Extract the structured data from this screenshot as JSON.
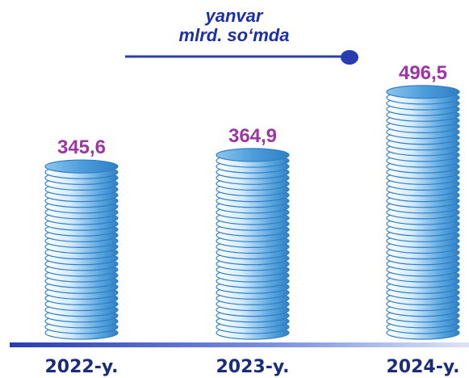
{
  "chart_data": {
    "type": "bar",
    "title": "yanvar",
    "subtitle": "mlrd. so‘mda",
    "categories": [
      "2022-y.",
      "2023-y.",
      "2024-y."
    ],
    "values": [
      345.6,
      364.9,
      496.5
    ],
    "value_labels": [
      "345,6",
      "364,9",
      "496,5"
    ],
    "style": "stacked coins",
    "colors": {
      "coin_top": "#5aa7df",
      "coin_edge": "#2f7fc6",
      "coin_light": "#d4ebfa",
      "value_label": "#9c36a3",
      "category_label": "#1b2d7a",
      "title": "#1c2fa6",
      "baseline": "#2a3db0"
    }
  }
}
